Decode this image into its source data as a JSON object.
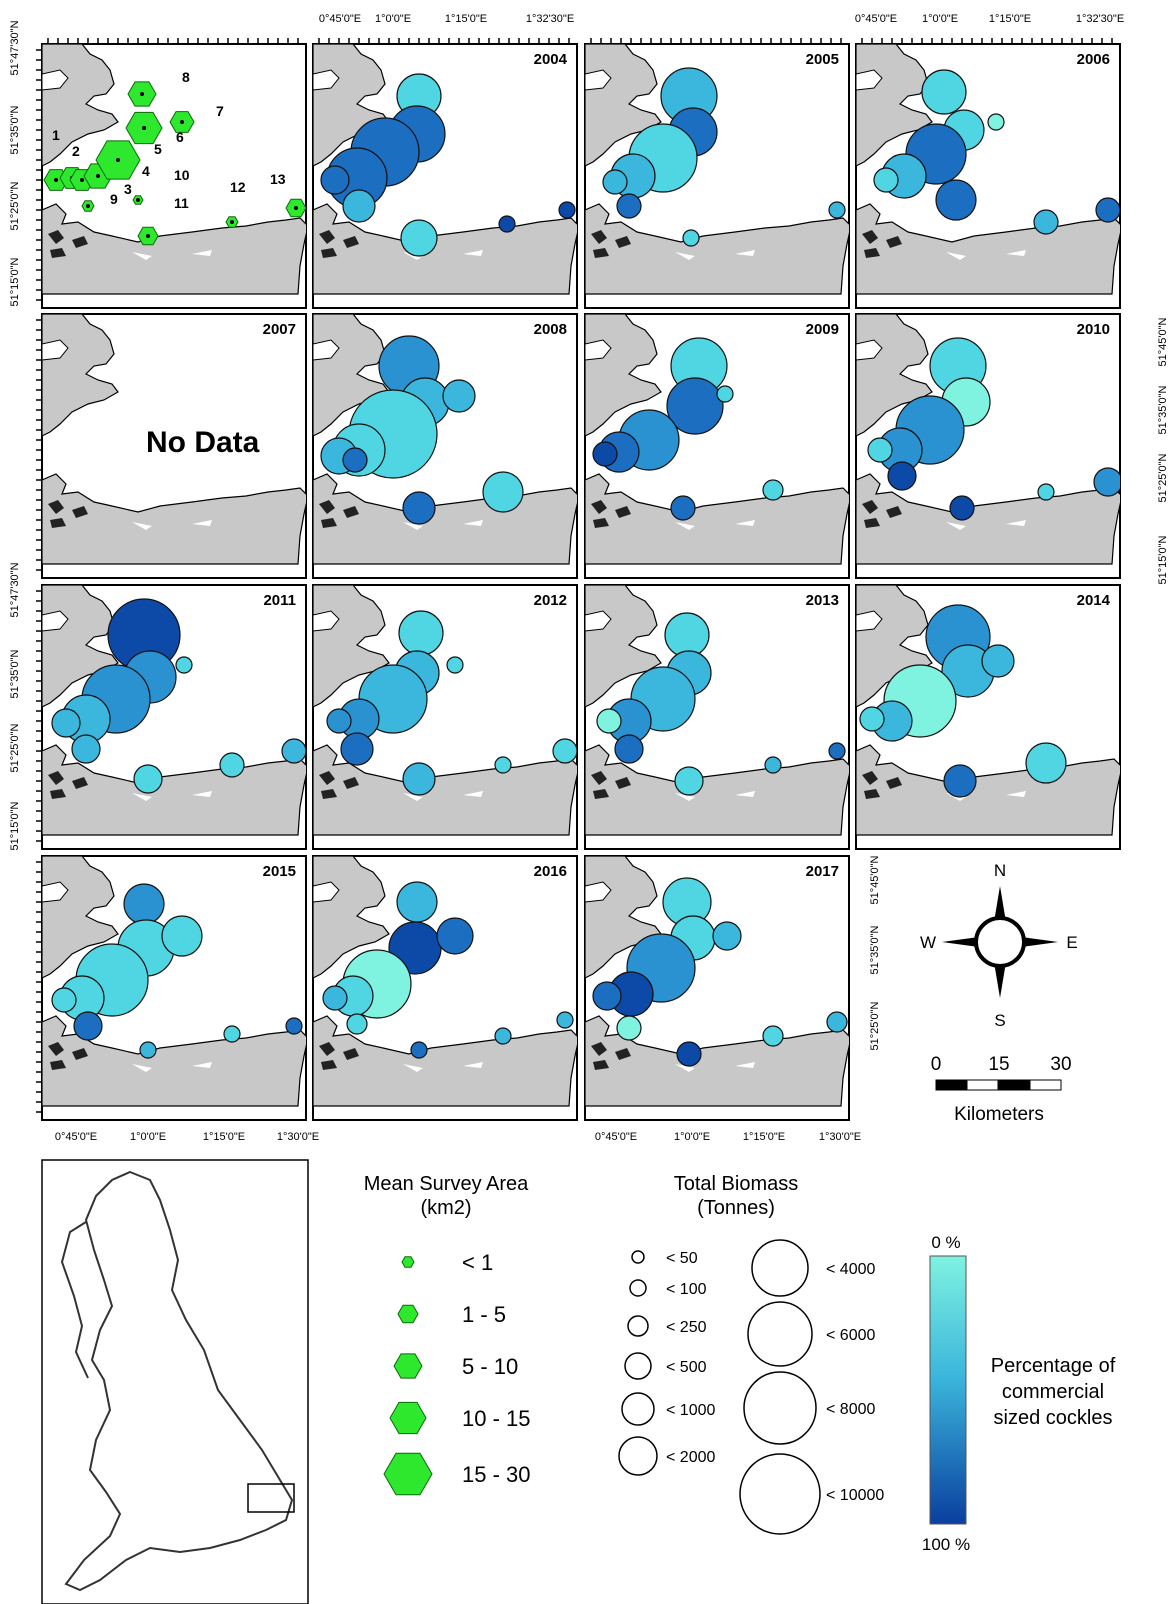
{
  "axis_labels": {
    "top_left": [
      "0°45'0\"E",
      "1°0'0\"E",
      "1°15'0\"E",
      "1°32'30\"E"
    ],
    "top_right": [
      "0°45'0\"E",
      "1°0'0\"E",
      "1°15'0\"E",
      "1°32'30\"E"
    ],
    "bottom_left": [
      "0°45'0\"E",
      "1°0'0\"E",
      "1°15'0\"E",
      "1°30'0\"E"
    ],
    "bottom_right": [
      "0°45'0\"E",
      "1°0'0\"E",
      "1°15'0\"E",
      "1°30'0\"E"
    ],
    "left_top": [
      "51°47'30\"N",
      "51°35'0\"N",
      "51°25'0\"N",
      "51°15'0\"N"
    ],
    "left_bottom": [
      "51°47'30\"N",
      "51°35'0\"N",
      "51°25'0\"N",
      "51°15'0\"N"
    ],
    "right_upper": [
      "51°45'0\"N",
      "51°35'0\"N",
      "51°25'0\"N",
      "51°15'0\"N"
    ],
    "right_lower": [
      "51°45'0\"N",
      "51°35'0\"N",
      "51°25'0\"N"
    ]
  },
  "panels": [
    {
      "year": "",
      "type": "sites"
    },
    {
      "year": "2004"
    },
    {
      "year": "2005"
    },
    {
      "year": "2006"
    },
    {
      "year": "2007",
      "no_data": "No Data"
    },
    {
      "year": "2008"
    },
    {
      "year": "2009"
    },
    {
      "year": "2010"
    },
    {
      "year": "2011"
    },
    {
      "year": "2012"
    },
    {
      "year": "2013"
    },
    {
      "year": "2014"
    },
    {
      "year": "2015"
    },
    {
      "year": "2016"
    },
    {
      "year": "2017"
    }
  ],
  "site_numbers": [
    "1",
    "2",
    "3",
    "4",
    "5",
    "6",
    "7",
    "8",
    "9",
    "10",
    "11",
    "12",
    "13"
  ],
  "north_arrow": {
    "n": "N",
    "s": "S",
    "e": "E",
    "w": "W"
  },
  "scale_bar": {
    "ticks": [
      "0",
      "15",
      "30"
    ],
    "unit": "Kilometers"
  },
  "legend_area": {
    "title": "Mean Survey Area",
    "title2": "(km2)",
    "items": [
      "< 1",
      "1 - 5",
      "5 - 10",
      "10 - 15",
      "15 - 30"
    ],
    "color": "#2ee82e"
  },
  "legend_biomass": {
    "title": "Total Biomass",
    "title2": "(Tonnes)",
    "small": [
      "< 50",
      "< 100",
      "< 250",
      "< 500",
      "< 1000",
      "< 2000"
    ],
    "large": [
      "< 4000",
      "< 6000",
      "< 8000",
      "< 10000"
    ]
  },
  "legend_color": {
    "top": "0 %",
    "bottom": "100 %",
    "label": [
      "Percentage of",
      "commercial",
      "sized cockles"
    ],
    "color_top": "#7ff2e0",
    "color_bottom": "#0a3f9e"
  }
}
